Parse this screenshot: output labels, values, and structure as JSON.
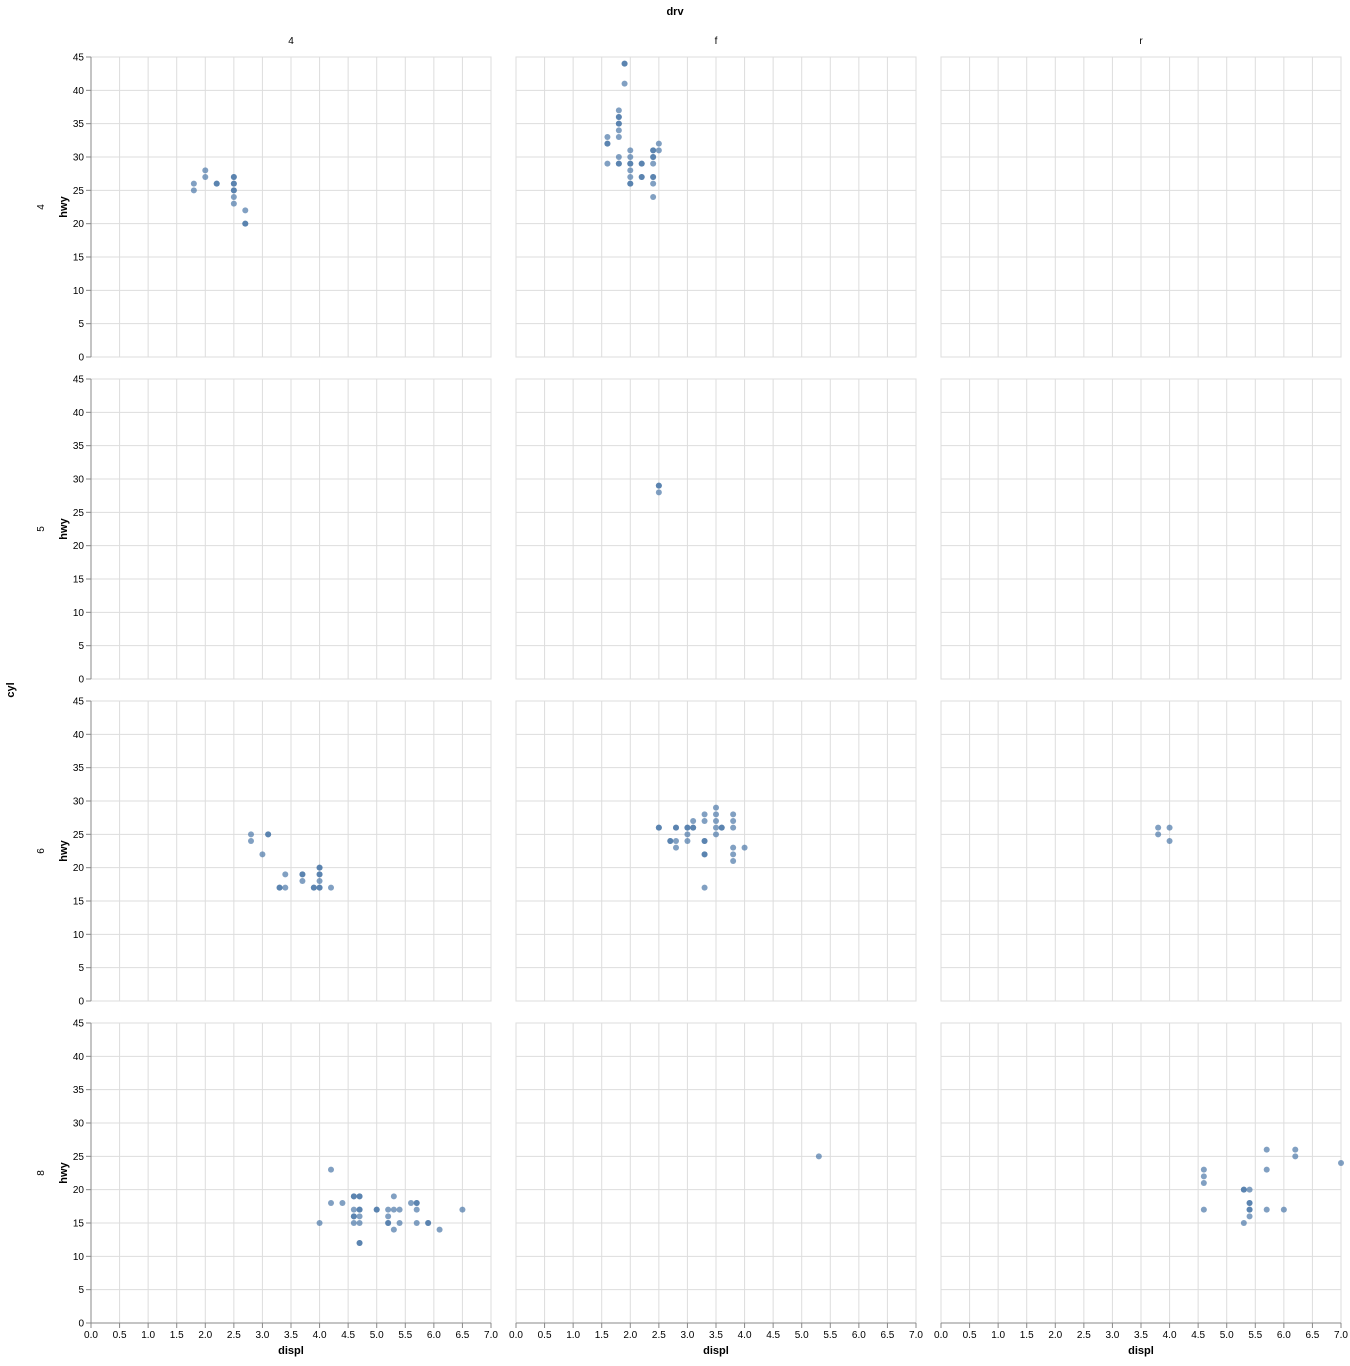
{
  "chart_data": {
    "type": "scatter",
    "title": "",
    "column_facet": {
      "field": "drv",
      "values": [
        "4",
        "f",
        "r"
      ]
    },
    "row_facet": {
      "field": "cyl",
      "values": [
        "4",
        "5",
        "6",
        "8"
      ]
    },
    "xlabel": "displ",
    "ylabel": "hwy",
    "xlim": [
      0,
      7
    ],
    "ylim": [
      0,
      45
    ],
    "x_ticks": [
      "0.0",
      "0.5",
      "1.0",
      "1.5",
      "2.0",
      "2.5",
      "3.0",
      "3.5",
      "4.0",
      "4.5",
      "5.0",
      "5.5",
      "6.0",
      "6.5",
      "7.0"
    ],
    "y_ticks": [
      "0",
      "5",
      "10",
      "15",
      "20",
      "25",
      "30",
      "35",
      "40",
      "45"
    ],
    "grid": true,
    "point_color": "#4c78a8",
    "point_opacity": 0.7,
    "panels": [
      {
        "row": "4",
        "col": "4",
        "points": [
          [
            1.8,
            26
          ],
          [
            1.8,
            25
          ],
          [
            2.0,
            28
          ],
          [
            2.0,
            27
          ],
          [
            2.2,
            26
          ],
          [
            2.2,
            26
          ],
          [
            2.5,
            27
          ],
          [
            2.5,
            27
          ],
          [
            2.5,
            26
          ],
          [
            2.5,
            26
          ],
          [
            2.5,
            25
          ],
          [
            2.5,
            25
          ],
          [
            2.5,
            24
          ],
          [
            2.5,
            23
          ],
          [
            2.7,
            22
          ],
          [
            2.7,
            20
          ],
          [
            2.7,
            20
          ]
        ]
      },
      {
        "row": "4",
        "col": "f",
        "points": [
          [
            1.6,
            33
          ],
          [
            1.6,
            32
          ],
          [
            1.6,
            32
          ],
          [
            1.6,
            29
          ],
          [
            1.8,
            37
          ],
          [
            1.8,
            36
          ],
          [
            1.8,
            36
          ],
          [
            1.8,
            35
          ],
          [
            1.8,
            35
          ],
          [
            1.8,
            34
          ],
          [
            1.8,
            33
          ],
          [
            1.8,
            30
          ],
          [
            1.8,
            29
          ],
          [
            1.8,
            29
          ],
          [
            1.9,
            44
          ],
          [
            1.9,
            44
          ],
          [
            1.9,
            41
          ],
          [
            2.0,
            31
          ],
          [
            2.0,
            30
          ],
          [
            2.0,
            29
          ],
          [
            2.0,
            29
          ],
          [
            2.0,
            28
          ],
          [
            2.0,
            27
          ],
          [
            2.0,
            26
          ],
          [
            2.0,
            26
          ],
          [
            2.2,
            29
          ],
          [
            2.2,
            29
          ],
          [
            2.2,
            27
          ],
          [
            2.2,
            27
          ],
          [
            2.4,
            31
          ],
          [
            2.4,
            31
          ],
          [
            2.4,
            30
          ],
          [
            2.4,
            30
          ],
          [
            2.4,
            29
          ],
          [
            2.4,
            27
          ],
          [
            2.4,
            27
          ],
          [
            2.4,
            26
          ],
          [
            2.4,
            24
          ],
          [
            2.5,
            32
          ],
          [
            2.5,
            31
          ]
        ]
      },
      {
        "row": "4",
        "col": "r",
        "points": []
      },
      {
        "row": "5",
        "col": "4",
        "points": []
      },
      {
        "row": "5",
        "col": "f",
        "points": [
          [
            2.5,
            29
          ],
          [
            2.5,
            29
          ],
          [
            2.5,
            28
          ]
        ]
      },
      {
        "row": "5",
        "col": "r",
        "points": []
      },
      {
        "row": "6",
        "col": "4",
        "points": [
          [
            2.8,
            25
          ],
          [
            2.8,
            24
          ],
          [
            3.0,
            22
          ],
          [
            3.1,
            25
          ],
          [
            3.1,
            25
          ],
          [
            3.3,
            17
          ],
          [
            3.3,
            17
          ],
          [
            3.4,
            19
          ],
          [
            3.4,
            17
          ],
          [
            3.7,
            19
          ],
          [
            3.7,
            19
          ],
          [
            3.7,
            18
          ],
          [
            3.9,
            17
          ],
          [
            3.9,
            17
          ],
          [
            4.0,
            20
          ],
          [
            4.0,
            20
          ],
          [
            4.0,
            19
          ],
          [
            4.0,
            19
          ],
          [
            4.0,
            18
          ],
          [
            4.0,
            17
          ],
          [
            4.0,
            17
          ],
          [
            4.2,
            17
          ]
        ]
      },
      {
        "row": "6",
        "col": "f",
        "points": [
          [
            2.5,
            26
          ],
          [
            2.5,
            26
          ],
          [
            2.7,
            24
          ],
          [
            2.7,
            24
          ],
          [
            2.8,
            26
          ],
          [
            2.8,
            26
          ],
          [
            2.8,
            24
          ],
          [
            2.8,
            23
          ],
          [
            3.0,
            26
          ],
          [
            3.0,
            26
          ],
          [
            3.0,
            25
          ],
          [
            3.0,
            24
          ],
          [
            3.1,
            27
          ],
          [
            3.1,
            26
          ],
          [
            3.1,
            26
          ],
          [
            3.3,
            28
          ],
          [
            3.3,
            27
          ],
          [
            3.3,
            24
          ],
          [
            3.3,
            24
          ],
          [
            3.3,
            22
          ],
          [
            3.3,
            22
          ],
          [
            3.3,
            17
          ],
          [
            3.5,
            29
          ],
          [
            3.5,
            28
          ],
          [
            3.5,
            27
          ],
          [
            3.5,
            26
          ],
          [
            3.5,
            25
          ],
          [
            3.6,
            26
          ],
          [
            3.6,
            26
          ],
          [
            3.8,
            28
          ],
          [
            3.8,
            27
          ],
          [
            3.8,
            26
          ],
          [
            3.8,
            23
          ],
          [
            3.8,
            22
          ],
          [
            3.8,
            21
          ],
          [
            4.0,
            23
          ]
        ]
      },
      {
        "row": "6",
        "col": "r",
        "points": [
          [
            3.8,
            26
          ],
          [
            3.8,
            25
          ],
          [
            4.0,
            26
          ],
          [
            4.0,
            24
          ]
        ]
      },
      {
        "row": "8",
        "col": "4",
        "points": [
          [
            4.0,
            15
          ],
          [
            4.2,
            23
          ],
          [
            4.2,
            18
          ],
          [
            4.4,
            18
          ],
          [
            4.6,
            19
          ],
          [
            4.6,
            19
          ],
          [
            4.6,
            17
          ],
          [
            4.6,
            16
          ],
          [
            4.6,
            16
          ],
          [
            4.6,
            15
          ],
          [
            4.7,
            19
          ],
          [
            4.7,
            19
          ],
          [
            4.7,
            17
          ],
          [
            4.7,
            17
          ],
          [
            4.7,
            16
          ],
          [
            4.7,
            15
          ],
          [
            4.7,
            12
          ],
          [
            4.7,
            12
          ],
          [
            5.0,
            17
          ],
          [
            5.0,
            17
          ],
          [
            5.2,
            17
          ],
          [
            5.2,
            16
          ],
          [
            5.2,
            15
          ],
          [
            5.2,
            15
          ],
          [
            5.3,
            19
          ],
          [
            5.3,
            17
          ],
          [
            5.3,
            14
          ],
          [
            5.4,
            17
          ],
          [
            5.4,
            15
          ],
          [
            5.6,
            18
          ],
          [
            5.7,
            18
          ],
          [
            5.7,
            18
          ],
          [
            5.7,
            17
          ],
          [
            5.7,
            15
          ],
          [
            5.9,
            15
          ],
          [
            5.9,
            15
          ],
          [
            6.1,
            14
          ],
          [
            6.5,
            17
          ]
        ]
      },
      {
        "row": "8",
        "col": "f",
        "points": [
          [
            5.3,
            25
          ]
        ]
      },
      {
        "row": "8",
        "col": "r",
        "points": [
          [
            4.6,
            23
          ],
          [
            4.6,
            22
          ],
          [
            4.6,
            21
          ],
          [
            4.6,
            17
          ],
          [
            5.3,
            20
          ],
          [
            5.3,
            20
          ],
          [
            5.3,
            15
          ],
          [
            5.4,
            20
          ],
          [
            5.4,
            18
          ],
          [
            5.4,
            18
          ],
          [
            5.4,
            17
          ],
          [
            5.4,
            17
          ],
          [
            5.4,
            16
          ],
          [
            5.7,
            26
          ],
          [
            5.7,
            23
          ],
          [
            5.7,
            17
          ],
          [
            6.0,
            17
          ],
          [
            6.2,
            26
          ],
          [
            6.2,
            25
          ],
          [
            7.0,
            24
          ]
        ]
      }
    ]
  }
}
